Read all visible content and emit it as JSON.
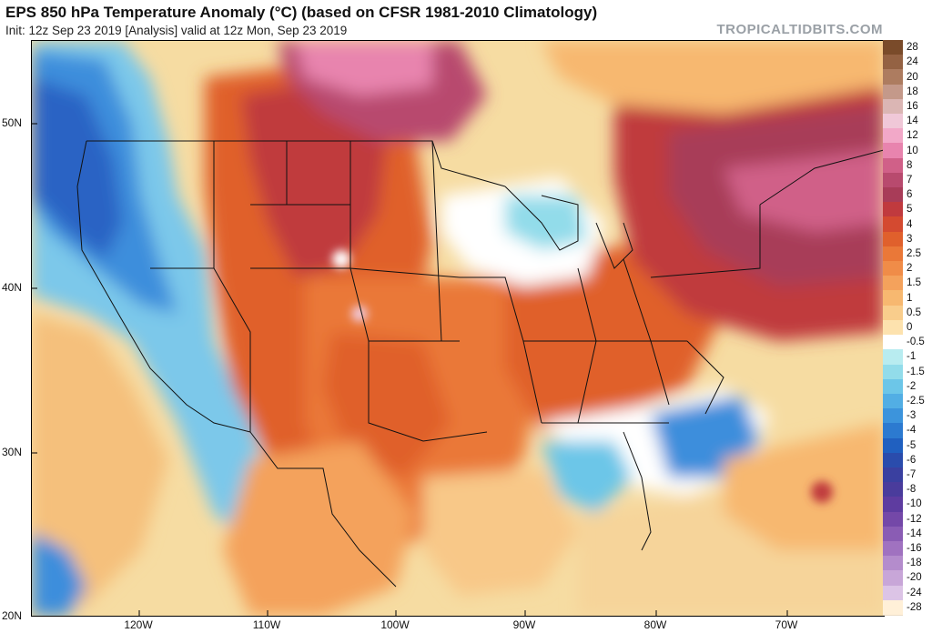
{
  "header": {
    "title": "EPS 850 hPa Temperature Anomaly (°C) (based on CFSR 1981-2010 Climatology)",
    "subtitle": "Init: 12z Sep 23 2019   [Analysis]   valid at 12z Mon, Sep 23 2019",
    "brand": "TROPICALTIDBITS.COM"
  },
  "axes": {
    "lat_labels": [
      "50N",
      "40N",
      "30N",
      "20N"
    ],
    "lon_labels": [
      "120W",
      "110W",
      "100W",
      "90W",
      "80W",
      "70W"
    ]
  },
  "colorbar": {
    "levels": [
      {
        "label": "28",
        "color": "#7a4b2a"
      },
      {
        "label": "24",
        "color": "#946243"
      },
      {
        "label": "20",
        "color": "#ad7c60"
      },
      {
        "label": "18",
        "color": "#c4998a"
      },
      {
        "label": "16",
        "color": "#dbb6b4"
      },
      {
        "label": "14",
        "color": "#f0c8d8"
      },
      {
        "label": "12",
        "color": "#f2a8c8"
      },
      {
        "label": "10",
        "color": "#e884ae"
      },
      {
        "label": "8",
        "color": "#d06088"
      },
      {
        "label": "7",
        "color": "#b84a6e"
      },
      {
        "label": "6",
        "color": "#a83c58"
      },
      {
        "label": "5",
        "color": "#c03a3e"
      },
      {
        "label": "4",
        "color": "#d44a30"
      },
      {
        "label": "3",
        "color": "#e0602c"
      },
      {
        "label": "2.5",
        "color": "#ea7838"
      },
      {
        "label": "2",
        "color": "#f08c48"
      },
      {
        "label": "1.5",
        "color": "#f4a25c"
      },
      {
        "label": "1",
        "color": "#f7b870"
      },
      {
        "label": "0.5",
        "color": "#f9cd8c"
      },
      {
        "label": "0",
        "color": "#fde2ae"
      },
      {
        "label": "-0.5",
        "color": "#ffffff"
      },
      {
        "label": "-1",
        "color": "#b8ecf0"
      },
      {
        "label": "-1.5",
        "color": "#92dcea"
      },
      {
        "label": "-2",
        "color": "#6cc6e8"
      },
      {
        "label": "-2.5",
        "color": "#52aee4"
      },
      {
        "label": "-3",
        "color": "#3c94dc"
      },
      {
        "label": "-4",
        "color": "#2c7ad0"
      },
      {
        "label": "-5",
        "color": "#2060c0"
      },
      {
        "label": "-6",
        "color": "#2a4cac"
      },
      {
        "label": "-7",
        "color": "#3a40a0"
      },
      {
        "label": "-8",
        "color": "#4a3c9c"
      },
      {
        "label": "-10",
        "color": "#5e3ca0"
      },
      {
        "label": "-12",
        "color": "#7448a8"
      },
      {
        "label": "-14",
        "color": "#8a5cb4"
      },
      {
        "label": "-16",
        "color": "#a072c0"
      },
      {
        "label": "-18",
        "color": "#b48ccc"
      },
      {
        "label": "-20",
        "color": "#c8a6d8"
      },
      {
        "label": "-24",
        "color": "#dcc4e6"
      },
      {
        "label": "-28",
        "color": "#fff0d8"
      }
    ]
  },
  "map": {
    "background_anomaly_color": "#f6dca2"
  }
}
